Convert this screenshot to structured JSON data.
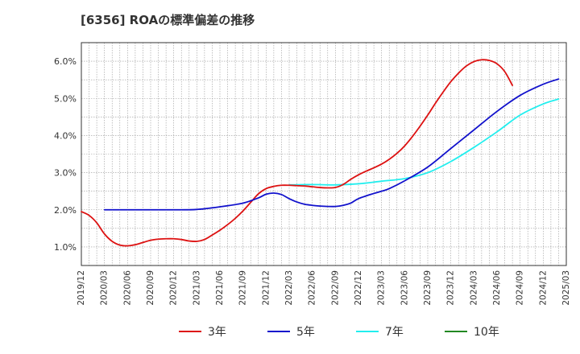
{
  "title": "[6356]  ROAの標準偏差の推移",
  "chart_data": {
    "type": "line",
    "title": "[6356]  ROAの標準偏差の推移",
    "xlabel": "",
    "ylabel": "",
    "x_ticks": [
      "2019/12",
      "2020/03",
      "2020/06",
      "2020/09",
      "2020/12",
      "2021/03",
      "2021/06",
      "2021/09",
      "2021/12",
      "2022/03",
      "2022/06",
      "2022/09",
      "2022/12",
      "2023/03",
      "2023/06",
      "2023/09",
      "2023/12",
      "2024/03",
      "2024/06",
      "2024/09",
      "2024/12",
      "2025/03"
    ],
    "y_ticks": [
      "1.0%",
      "2.0%",
      "3.0%",
      "4.0%",
      "5.0%",
      "6.0%"
    ],
    "ylim": [
      0.5,
      6.5
    ],
    "grid": true,
    "legend_position": "bottom",
    "series": [
      {
        "name": "3年",
        "color": "#dd1111",
        "points": [
          [
            "2019/12",
            1.95
          ],
          [
            "2020/01",
            1.85
          ],
          [
            "2020/02",
            1.65
          ],
          [
            "2020/03",
            1.35
          ],
          [
            "2020/04",
            1.15
          ],
          [
            "2020/05",
            1.05
          ],
          [
            "2020/06",
            1.03
          ],
          [
            "2020/07",
            1.06
          ],
          [
            "2020/08",
            1.12
          ],
          [
            "2020/09",
            1.18
          ],
          [
            "2020/10",
            1.21
          ],
          [
            "2020/11",
            1.22
          ],
          [
            "2020/12",
            1.22
          ],
          [
            "2021/01",
            1.2
          ],
          [
            "2021/02",
            1.16
          ],
          [
            "2021/03",
            1.15
          ],
          [
            "2021/04",
            1.2
          ],
          [
            "2021/05",
            1.32
          ],
          [
            "2021/06",
            1.45
          ],
          [
            "2021/07",
            1.6
          ],
          [
            "2021/08",
            1.77
          ],
          [
            "2021/09",
            1.97
          ],
          [
            "2021/10",
            2.2
          ],
          [
            "2021/11",
            2.43
          ],
          [
            "2021/12",
            2.57
          ],
          [
            "2022/01",
            2.63
          ],
          [
            "2022/02",
            2.66
          ],
          [
            "2022/03",
            2.66
          ],
          [
            "2022/04",
            2.65
          ],
          [
            "2022/05",
            2.64
          ],
          [
            "2022/06",
            2.62
          ],
          [
            "2022/07",
            2.6
          ],
          [
            "2022/08",
            2.59
          ],
          [
            "2022/09",
            2.6
          ],
          [
            "2022/10",
            2.68
          ],
          [
            "2022/11",
            2.82
          ],
          [
            "2022/12",
            2.94
          ],
          [
            "2023/01",
            3.04
          ],
          [
            "2023/02",
            3.13
          ],
          [
            "2023/03",
            3.23
          ],
          [
            "2023/04",
            3.36
          ],
          [
            "2023/05",
            3.52
          ],
          [
            "2023/06",
            3.72
          ],
          [
            "2023/07",
            3.97
          ],
          [
            "2023/08",
            4.25
          ],
          [
            "2023/09",
            4.55
          ],
          [
            "2023/10",
            4.87
          ],
          [
            "2023/11",
            5.17
          ],
          [
            "2023/12",
            5.45
          ],
          [
            "2024/01",
            5.68
          ],
          [
            "2024/02",
            5.87
          ],
          [
            "2024/03",
            5.99
          ],
          [
            "2024/04",
            6.04
          ],
          [
            "2024/05",
            6.02
          ],
          [
            "2024/06",
            5.93
          ],
          [
            "2024/07",
            5.72
          ],
          [
            "2024/08",
            5.35
          ]
        ]
      },
      {
        "name": "5年",
        "color": "#1111cc",
        "points": [
          [
            "2020/03",
            2.0
          ],
          [
            "2020/06",
            2.0
          ],
          [
            "2020/09",
            2.0
          ],
          [
            "2020/12",
            2.0
          ],
          [
            "2021/03",
            2.01
          ],
          [
            "2021/06",
            2.08
          ],
          [
            "2021/09",
            2.18
          ],
          [
            "2021/11",
            2.32
          ],
          [
            "2021/12",
            2.42
          ],
          [
            "2022/01",
            2.45
          ],
          [
            "2022/02",
            2.41
          ],
          [
            "2022/03",
            2.3
          ],
          [
            "2022/04",
            2.21
          ],
          [
            "2022/05",
            2.15
          ],
          [
            "2022/06",
            2.12
          ],
          [
            "2022/07",
            2.1
          ],
          [
            "2022/08",
            2.09
          ],
          [
            "2022/09",
            2.09
          ],
          [
            "2022/10",
            2.12
          ],
          [
            "2022/11",
            2.18
          ],
          [
            "2022/12",
            2.3
          ],
          [
            "2023/02",
            2.44
          ],
          [
            "2023/03",
            2.5
          ],
          [
            "2023/04",
            2.57
          ],
          [
            "2023/06",
            2.78
          ],
          [
            "2023/09",
            3.15
          ],
          [
            "2023/12",
            3.65
          ],
          [
            "2024/03",
            4.15
          ],
          [
            "2024/06",
            4.65
          ],
          [
            "2024/09",
            5.08
          ],
          [
            "2024/12",
            5.38
          ],
          [
            "2025/02",
            5.52
          ]
        ]
      },
      {
        "name": "7年",
        "color": "#22eeee",
        "points": [
          [
            "2022/03",
            2.67
          ],
          [
            "2022/06",
            2.68
          ],
          [
            "2022/09",
            2.67
          ],
          [
            "2022/12",
            2.7
          ],
          [
            "2023/03",
            2.77
          ],
          [
            "2023/06",
            2.84
          ],
          [
            "2023/09",
            3.0
          ],
          [
            "2023/12",
            3.3
          ],
          [
            "2024/03",
            3.68
          ],
          [
            "2024/06",
            4.1
          ],
          [
            "2024/09",
            4.55
          ],
          [
            "2024/12",
            4.85
          ],
          [
            "2025/02",
            4.98
          ]
        ]
      },
      {
        "name": "10年",
        "color": "#228822",
        "points": []
      }
    ]
  }
}
